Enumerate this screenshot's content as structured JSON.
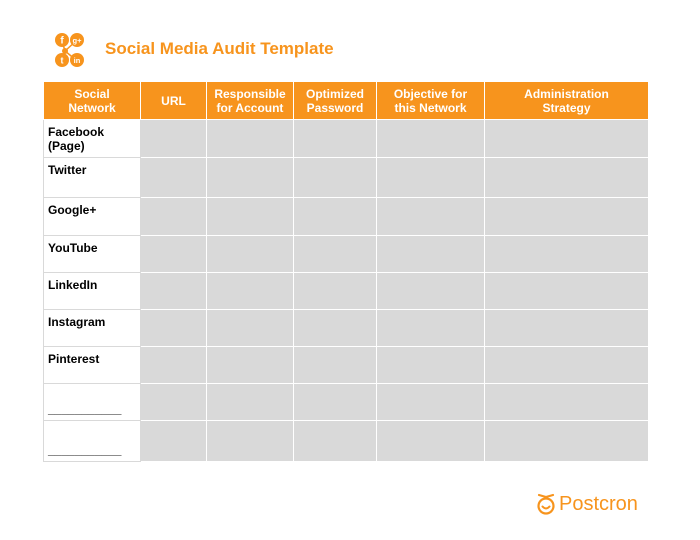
{
  "header": {
    "title": "Social Media Audit Template",
    "logo_icons": [
      "facebook-icon",
      "google-plus-icon",
      "twitter-icon",
      "linkedin-icon"
    ],
    "logo_glyphs": [
      "f",
      "g+",
      "t",
      "in"
    ]
  },
  "table": {
    "columns": [
      "Social\nNetwork",
      "URL",
      "Responsible\nfor Account",
      "Optimized\nPassword",
      "Objective for\nthis Network",
      "Administration\nStrategy"
    ],
    "rows": [
      "Facebook\n(Page)",
      "Twitter",
      "Google+",
      "YouTube",
      "LinkedIn",
      "Instagram",
      "Pinterest",
      "___________",
      "___________"
    ]
  },
  "brand": {
    "name": "Postcron",
    "icon": "postcron-smile-icon"
  },
  "colors": {
    "accent": "#f7941d",
    "cell_fill": "#d9d9d9",
    "text": "#000000"
  }
}
